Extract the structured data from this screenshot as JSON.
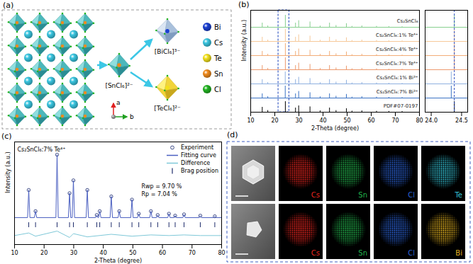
{
  "chart_data": [
    {
      "title": "(b)",
      "type": "stick",
      "x_label": "2-Theta (degree)",
      "y_label": "Intensity (a.u.)",
      "xlim": [
        10,
        80
      ],
      "xticks": [
        10,
        20,
        30,
        40,
        50,
        60,
        70,
        80
      ],
      "ylim": [
        0,
        7.2
      ],
      "yticks": [],
      "tick_labels": "x",
      "zoom_range": [
        21.5,
        26
      ],
      "series": [
        {
          "name": "Cs₂SnCl₆",
          "color": "#86cf8f",
          "offset": 6,
          "x": [
            14.8,
            17.1,
            24.38,
            28.6,
            29.9,
            34.6,
            38.8,
            42.7,
            45.4,
            49.7,
            52.0,
            56.1,
            62.2,
            67.3,
            72.8
          ],
          "values": [
            0.3,
            0.1,
            0.85,
            0.3,
            0.47,
            0.38,
            0.09,
            0.3,
            0.13,
            0.26,
            0.07,
            0.1,
            0.07,
            0.05,
            0.04
          ]
        },
        {
          "name": "Cs₂SnCl₆:1% Te⁴⁺",
          "color": "#f6c89a",
          "offset": 5,
          "x": [
            14.8,
            17.1,
            24.38,
            28.6,
            29.9,
            34.6,
            38.8,
            42.7,
            45.4,
            49.7,
            52.0,
            56.1,
            62.2,
            67.3,
            72.8
          ],
          "values": [
            0.3,
            0.1,
            0.85,
            0.3,
            0.47,
            0.38,
            0.09,
            0.3,
            0.13,
            0.26,
            0.07,
            0.1,
            0.07,
            0.05,
            0.04
          ]
        },
        {
          "name": "Cs₂SnCl₆:4% Te⁴⁺",
          "color": "#f2ad78",
          "offset": 4,
          "x": [
            14.8,
            17.1,
            24.38,
            28.6,
            29.9,
            34.6,
            38.8,
            42.7,
            45.4,
            49.7,
            52.0,
            56.1,
            62.2,
            67.3,
            72.8
          ],
          "values": [
            0.3,
            0.1,
            0.85,
            0.3,
            0.47,
            0.38,
            0.09,
            0.3,
            0.13,
            0.26,
            0.07,
            0.1,
            0.07,
            0.05,
            0.04
          ]
        },
        {
          "name": "Cs₂SnCl₆:7% Te⁴⁺",
          "color": "#ec9a6e",
          "offset": 3,
          "x": [
            14.8,
            17.1,
            24.38,
            28.6,
            29.9,
            34.6,
            38.8,
            42.7,
            45.4,
            49.7,
            52.0,
            56.1,
            62.2,
            67.3,
            72.8
          ],
          "values": [
            0.3,
            0.1,
            0.85,
            0.3,
            0.47,
            0.38,
            0.09,
            0.3,
            0.13,
            0.26,
            0.07,
            0.1,
            0.07,
            0.05,
            0.04
          ]
        },
        {
          "name": "Cs₂SnCl₆:1% Bi³⁺",
          "color": "#8fb0df",
          "offset": 2,
          "x": [
            14.8,
            17.1,
            24.33,
            28.6,
            29.9,
            34.6,
            38.8,
            42.7,
            45.4,
            49.7,
            52.0,
            56.1,
            62.2,
            67.3,
            72.8
          ],
          "values": [
            0.3,
            0.1,
            0.85,
            0.3,
            0.47,
            0.38,
            0.09,
            0.3,
            0.13,
            0.26,
            0.07,
            0.1,
            0.07,
            0.05,
            0.04
          ]
        },
        {
          "name": "Cs₂SnCl₆:7% Bi³⁺",
          "color": "#3b73c4",
          "offset": 1,
          "x": [
            14.8,
            17.1,
            24.33,
            28.6,
            29.9,
            34.6,
            38.8,
            42.7,
            45.4,
            49.7,
            52.0,
            56.1,
            62.2,
            67.3,
            72.8
          ],
          "values": [
            0.3,
            0.1,
            0.85,
            0.3,
            0.47,
            0.38,
            0.09,
            0.3,
            0.13,
            0.26,
            0.07,
            0.1,
            0.07,
            0.05,
            0.04
          ]
        },
        {
          "name": "PDF#07-0197",
          "color": "#000000",
          "offset": 0,
          "x": [
            14.8,
            17.1,
            24.38,
            28.6,
            29.9,
            34.6,
            38.8,
            42.7,
            45.4,
            49.7,
            52.0,
            56.1,
            62.2,
            67.3,
            72.8
          ],
          "values": [
            0.35,
            0.12,
            0.75,
            0.3,
            0.45,
            0.38,
            0.1,
            0.3,
            0.12,
            0.25,
            0.08,
            0.1,
            0.07,
            0.06,
            0.05
          ]
        }
      ],
      "inset": {
        "xlim": [
          23.9,
          24.6
        ],
        "xticks": [
          {
            "value": 24,
            "label": "24.0"
          },
          {
            "value": 24.5,
            "label": "24.5"
          }
        ],
        "reference_line": 24.38
      }
    },
    {
      "title": "(c)",
      "type": "line",
      "x_label": "2-Theta (degree)",
      "y_label": "Intensity (a.u.)",
      "xlim": [
        10,
        80
      ],
      "xticks": [
        10,
        20,
        30,
        40,
        50,
        60,
        70,
        80
      ],
      "ylim": [
        -0.4,
        1.2
      ],
      "yticks": [],
      "tick_labels": "x",
      "legend": "top-right",
      "annotations": [
        "Cs₂SnCl₆:7% Te⁴⁺",
        "Rwp = 9.70 %",
        "Rp = 7.04 %"
      ],
      "series": [
        {
          "name": "Experiment",
          "type": "scatter",
          "marker": "open-circle",
          "color": "#2b3a7a",
          "x": [
            14.8,
            17.1,
            24.38,
            28.6,
            29.9,
            34.6,
            37.8,
            38.8,
            42.7,
            45.4,
            49.7,
            52.0,
            56.1,
            58.4,
            62.2,
            64.3,
            67.3,
            72.8,
            77.7
          ],
          "values": [
            0.45,
            0.12,
            1.0,
            0.4,
            0.6,
            0.45,
            0.06,
            0.12,
            0.35,
            0.12,
            0.3,
            0.08,
            0.12,
            0.06,
            0.08,
            0.05,
            0.07,
            0.05,
            0.04
          ]
        },
        {
          "name": "Fitting curve",
          "type": "line",
          "color": "#4a5fc1",
          "x": [
            10,
            14.4,
            14.8,
            15.2,
            16.7,
            17.1,
            17.5,
            23.98,
            24.38,
            24.78,
            28.2,
            28.6,
            29.0,
            29.5,
            29.9,
            30.3,
            34.2,
            34.6,
            35.0,
            37.4,
            37.8,
            38.2,
            38.4,
            38.8,
            39.2,
            42.3,
            42.7,
            43.1,
            45.0,
            45.4,
            45.8,
            49.3,
            49.7,
            50.1,
            51.6,
            52.0,
            52.4,
            55.7,
            56.1,
            56.5,
            58.0,
            58.4,
            58.8,
            61.8,
            62.2,
            62.6,
            63.9,
            64.3,
            64.7,
            66.9,
            67.3,
            67.7,
            72.4,
            72.8,
            73.2,
            77.3,
            77.7,
            78.1,
            80
          ],
          "values": [
            0.02,
            0.02,
            0.45,
            0.02,
            0.02,
            0.12,
            0.02,
            0.02,
            1.0,
            0.02,
            0.02,
            0.4,
            0.02,
            0.02,
            0.6,
            0.02,
            0.02,
            0.45,
            0.02,
            0.02,
            0.06,
            0.02,
            0.02,
            0.12,
            0.02,
            0.02,
            0.35,
            0.02,
            0.02,
            0.12,
            0.02,
            0.02,
            0.3,
            0.02,
            0.02,
            0.08,
            0.02,
            0.02,
            0.12,
            0.02,
            0.02,
            0.06,
            0.02,
            0.02,
            0.08,
            0.02,
            0.02,
            0.05,
            0.02,
            0.02,
            0.07,
            0.02,
            0.02,
            0.05,
            0.02,
            0.02,
            0.04,
            0.02,
            0.02
          ]
        },
        {
          "name": "Difference",
          "type": "line",
          "color": "#7ec8d8",
          "x": [
            10,
            14.8,
            17.1,
            24.38,
            28.6,
            29.9,
            34.6,
            42.7,
            49.7,
            56.1,
            62.2,
            67.3,
            72.8,
            80
          ],
          "values": [
            -0.26,
            -0.22,
            -0.27,
            -0.19,
            -0.29,
            -0.23,
            -0.28,
            -0.24,
            -0.27,
            -0.25,
            -0.26,
            -0.25,
            -0.26,
            -0.26
          ]
        },
        {
          "name": "Brag position",
          "type": "stick",
          "color": "#1f2d6b",
          "x": [
            14.8,
            17.1,
            24.38,
            28.6,
            29.9,
            34.6,
            37.8,
            38.8,
            42.7,
            45.4,
            49.7,
            52.0,
            56.1,
            58.4,
            62.2,
            64.3,
            67.3,
            72.8,
            77.7
          ]
        }
      ]
    }
  ],
  "diagram": {
    "title": "(a)",
    "host": {
      "label": "[SnCl₆]²⁻"
    },
    "dopants": [
      {
        "label": "[BiCl₆]³⁻"
      },
      {
        "label": "[TeCl₆]²⁻"
      }
    ],
    "axes": [
      "a",
      "b"
    ],
    "elements": [
      {
        "label": "Bi",
        "color": "#1a3fd1"
      },
      {
        "label": "Cs",
        "color": "#39c5e0"
      },
      {
        "label": "Te",
        "color": "#f2e01b"
      },
      {
        "label": "Sn",
        "color": "#f08a1c"
      },
      {
        "label": "Cl",
        "color": "#21b321"
      }
    ]
  },
  "images": {
    "title": "(d)",
    "rows": [
      {
        "maps": [
          {
            "label": "Cs",
            "color": "#e8251f"
          },
          {
            "label": "Sn",
            "color": "#22b24c"
          },
          {
            "label": "Cl",
            "color": "#2b63d9"
          },
          {
            "label": "Te",
            "color": "#34c3d6"
          }
        ]
      },
      {
        "maps": [
          {
            "label": "Cs",
            "color": "#e8251f"
          },
          {
            "label": "Sn",
            "color": "#22b24c"
          },
          {
            "label": "Cl",
            "color": "#2b63d9"
          },
          {
            "label": "Bi",
            "color": "#e0b020"
          }
        ]
      }
    ]
  }
}
